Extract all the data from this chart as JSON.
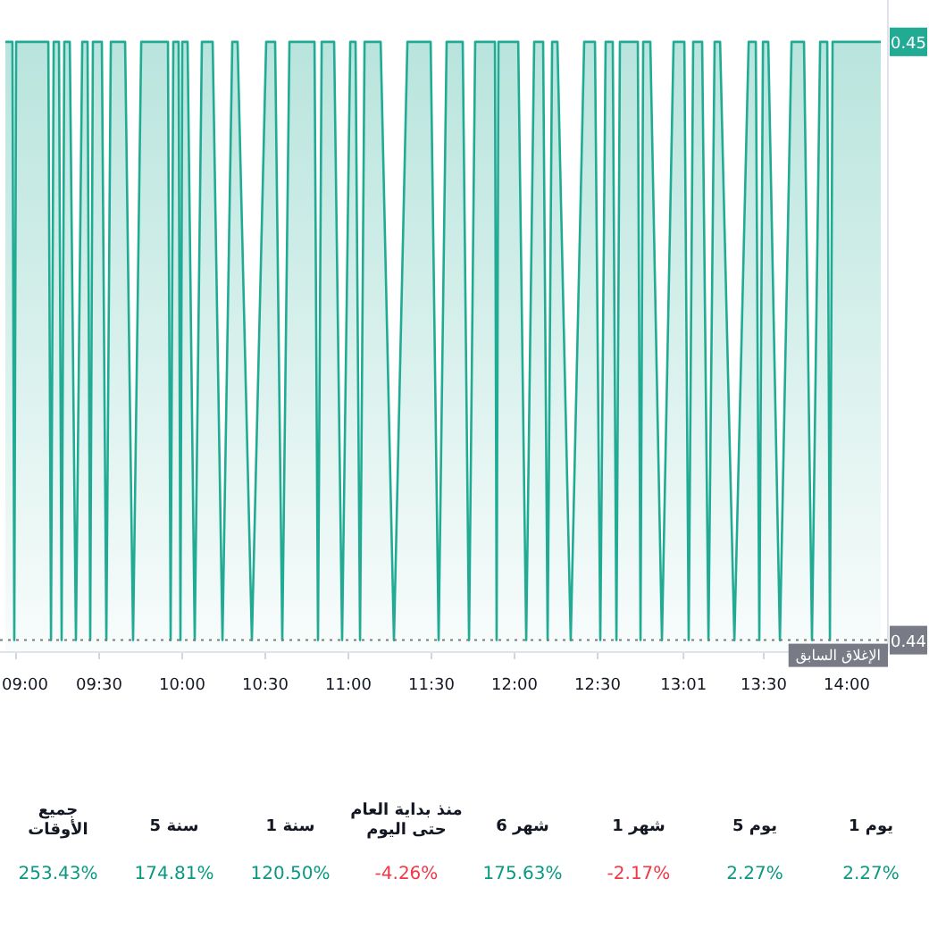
{
  "chart_data": [
    {
      "type": "area",
      "color": "#22ab94",
      "x": [
        8.935,
        8.978,
        8.989,
        9.0,
        9.194,
        9.21,
        9.226,
        9.258,
        9.274,
        9.29,
        9.323,
        9.36,
        9.398,
        9.43,
        9.446,
        9.462,
        9.516,
        9.543,
        9.57,
        9.656,
        9.704,
        9.753,
        9.914,
        9.93,
        9.946,
        9.978,
        9.989,
        10.0,
        10.032,
        10.075,
        10.118,
        10.183,
        10.242,
        10.301,
        10.333,
        10.419,
        10.505,
        10.559,
        10.602,
        10.645,
        10.796,
        10.817,
        10.839,
        10.914,
        10.962,
        11.011,
        11.043,
        11.07,
        11.097,
        11.194,
        11.274,
        11.355,
        11.495,
        11.543,
        11.591,
        11.688,
        11.726,
        11.763,
        11.882,
        11.892,
        11.903,
        12.022,
        12.07,
        12.118,
        12.172,
        12.199,
        12.226,
        12.258,
        12.338,
        12.419,
        12.484,
        12.516,
        12.548,
        12.591,
        12.613,
        12.634,
        12.742,
        12.758,
        12.774,
        12.817,
        12.887,
        12.957,
        13.022,
        13.048,
        13.075,
        13.129,
        13.167,
        13.204,
        13.237,
        13.323,
        13.409,
        13.452,
        13.473,
        13.495,
        13.527,
        13.597,
        13.667,
        13.742,
        13.79,
        13.839,
        13.882,
        13.898,
        13.914,
        14.204
      ],
      "values": [
        0.45,
        0.45,
        0.44,
        0.45,
        0.45,
        0.44,
        0.45,
        0.45,
        0.44,
        0.45,
        0.45,
        0.44,
        0.45,
        0.45,
        0.44,
        0.45,
        0.45,
        0.44,
        0.45,
        0.45,
        0.44,
        0.45,
        0.45,
        0.44,
        0.45,
        0.45,
        0.44,
        0.45,
        0.45,
        0.44,
        0.45,
        0.45,
        0.44,
        0.45,
        0.45,
        0.44,
        0.45,
        0.45,
        0.44,
        0.45,
        0.45,
        0.44,
        0.45,
        0.45,
        0.44,
        0.45,
        0.45,
        0.44,
        0.45,
        0.45,
        0.44,
        0.45,
        0.45,
        0.44,
        0.45,
        0.45,
        0.44,
        0.45,
        0.45,
        0.44,
        0.45,
        0.45,
        0.44,
        0.45,
        0.45,
        0.44,
        0.45,
        0.45,
        0.44,
        0.45,
        0.45,
        0.44,
        0.45,
        0.45,
        0.44,
        0.45,
        0.45,
        0.44,
        0.45,
        0.45,
        0.44,
        0.45,
        0.45,
        0.44,
        0.45,
        0.45,
        0.44,
        0.45,
        0.45,
        0.44,
        0.45,
        0.45,
        0.44,
        0.45,
        0.45,
        0.44,
        0.45,
        0.45,
        0.44,
        0.45,
        0.45,
        0.44,
        0.45,
        0.45
      ],
      "xlim": [
        8.903,
        14.247
      ],
      "ylim": [
        0.4398,
        0.4507
      ],
      "xticks": [
        {
          "value": 9,
          "label": "09:00"
        },
        {
          "value": 9.5,
          "label": "09:30"
        },
        {
          "value": 10,
          "label": "10:00"
        },
        {
          "value": 10.5,
          "label": "10:30"
        },
        {
          "value": 11,
          "label": "11:00"
        },
        {
          "value": 11.5,
          "label": "11:30"
        },
        {
          "value": 12,
          "label": "12:00"
        },
        {
          "value": 12.5,
          "label": "12:30"
        },
        {
          "value": 13.017,
          "label": "13:01"
        },
        {
          "value": 13.5,
          "label": "13:30"
        },
        {
          "value": 14,
          "label": "14:00"
        }
      ],
      "yticks": [
        0.45,
        0.44
      ],
      "ref_lines": [
        {
          "axis": "y",
          "value": 0.44,
          "label": "الإغلاق السابق",
          "color": "#787b86",
          "line_style": "dotted"
        }
      ]
    },
    {
      "type": "other",
      "categories": [
        "جميع الأوقات",
        "5 سنة",
        "1 سنة",
        "منذ بداية العام حتى اليوم",
        "6 شهر",
        "1 شهر",
        "5 يوم",
        "1 يوم"
      ],
      "values": [
        253.43,
        174.81,
        120.5,
        -4.26,
        175.63,
        -2.17,
        2.27,
        2.27
      ],
      "value_labels": [
        "253.43%",
        "174.81%",
        "120.50%",
        "-4.26%",
        "175.63%",
        "-2.17%",
        "2.27%",
        "2.27%"
      ],
      "colors": [
        "#089981",
        "#089981",
        "#089981",
        "#f23645",
        "#089981",
        "#f23645",
        "#089981",
        "#089981"
      ]
    }
  ]
}
